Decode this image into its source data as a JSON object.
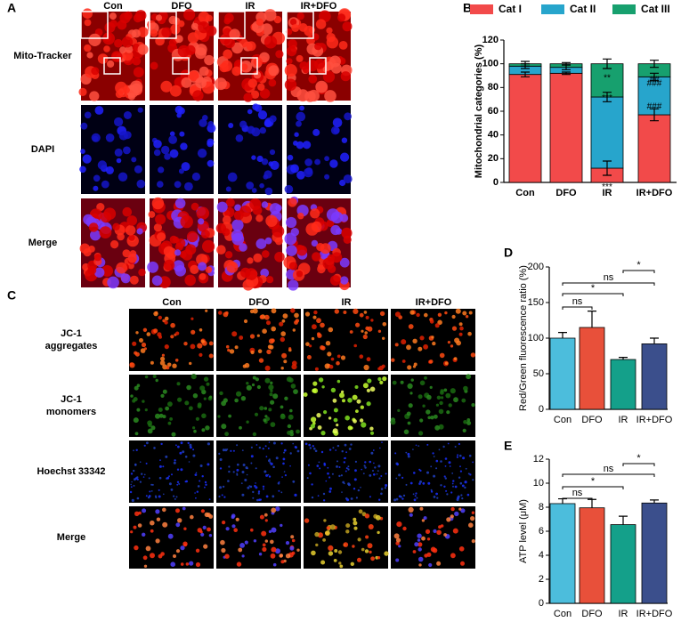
{
  "panel_labels": [
    "A",
    "B",
    "C",
    "D",
    "E"
  ],
  "image_panels": {
    "A": {
      "columns": [
        "Con",
        "DFO",
        "IR",
        "IR+DFO"
      ],
      "rows": [
        [
          "Mito-Tracker"
        ],
        [
          "DAPI"
        ],
        [
          "Merge"
        ]
      ]
    },
    "C": {
      "columns": [
        "Con",
        "DFO",
        "IR",
        "IR+DFO"
      ],
      "rows": [
        [
          "JC-1",
          "aggregates"
        ],
        [
          "JC-1",
          "monomers"
        ],
        [
          "Hoechst 33342"
        ],
        [
          "Merge"
        ]
      ]
    }
  },
  "chart_data": [
    {
      "type": "stacked_bar",
      "ylabel": "Mitochondrial categories (%)",
      "categories": [
        "Con",
        "DFO",
        "IR",
        "IR+DFO"
      ],
      "series": [
        {
          "name": "Cat I",
          "color": "#f24a4a",
          "values": [
            91,
            92,
            12,
            57
          ],
          "errors": [
            2,
            1,
            6,
            5
          ]
        },
        {
          "name": "Cat II",
          "color": "#27a5cc",
          "values": [
            7,
            5,
            60,
            32
          ],
          "errors": [
            2,
            2,
            4,
            3
          ]
        },
        {
          "name": "Cat III",
          "color": "#17a06e",
          "values": [
            2,
            3,
            28,
            11
          ],
          "errors": [
            2,
            1,
            4,
            3
          ]
        }
      ],
      "annotations": [
        "**",
        "***",
        "***",
        "##",
        "###",
        "###"
      ],
      "ylim": [
        0,
        120
      ],
      "yticks": [
        0,
        20,
        40,
        60,
        80,
        100,
        120
      ]
    },
    {
      "type": "bar",
      "ylabel": "Red/Green fluorescence ratio (%)",
      "categories": [
        "Con",
        "DFO",
        "IR",
        "IR+DFO"
      ],
      "colors": [
        "#4cbddc",
        "#e8503a",
        "#14a08a",
        "#3b4f8c"
      ],
      "values": [
        100,
        115,
        70,
        92
      ],
      "errors": [
        8,
        23,
        3,
        8
      ],
      "comparisons": [
        "ns",
        "*",
        "ns",
        "*"
      ],
      "ylim": [
        0,
        200
      ],
      "yticks": [
        0,
        50,
        100,
        150,
        200
      ]
    },
    {
      "type": "bar",
      "ylabel": "ATP level (μM)",
      "categories": [
        "Con",
        "DFO",
        "IR",
        "IR+DFO"
      ],
      "colors": [
        "#4cbddc",
        "#e8503a",
        "#14a08a",
        "#3b4f8c"
      ],
      "values": [
        8.3,
        7.95,
        6.55,
        8.35
      ],
      "errors": [
        0.4,
        0.7,
        0.7,
        0.25
      ],
      "comparisons": [
        "ns",
        "*",
        "ns",
        "*"
      ],
      "ylim": [
        0,
        12
      ],
      "yticks": [
        0,
        2,
        4,
        6,
        8,
        10,
        12
      ]
    }
  ]
}
